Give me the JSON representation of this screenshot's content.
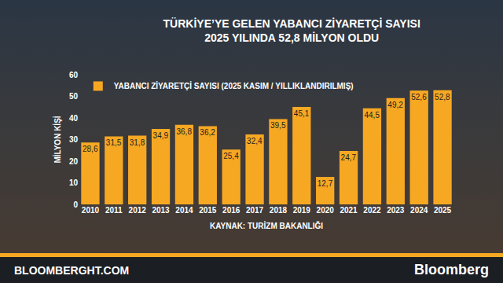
{
  "chart_data": {
    "type": "bar",
    "title": [
      "TÜRKİYE’YE GELEN YABANCI ZİYARETÇİ SAYISI",
      "2025 YILINDA 52,8 MİLYON OLDU"
    ],
    "ylabel": "MİLYON KİŞİ",
    "categories": [
      "2010",
      "2011",
      "2012",
      "2013",
      "2014",
      "2015",
      "2016",
      "2017",
      "2018",
      "2019",
      "2020",
      "2021",
      "2022",
      "2023",
      "2024",
      "2025"
    ],
    "series": [
      {
        "name": "YABANCI ZİYARETÇİ SAYISI (2025 KASIM / YILLIKLANDIRILMIŞ)",
        "color": "#f7a823",
        "values": [
          28.6,
          31.5,
          31.8,
          34.9,
          36.8,
          36.2,
          25.4,
          32.4,
          39.5,
          45.1,
          12.7,
          24.7,
          44.5,
          49.2,
          52.6,
          52.8
        ],
        "value_labels": [
          "28,6",
          "31,5",
          "31,8",
          "34,9",
          "36,8",
          "36,2",
          "25,4",
          "32,4",
          "39,5",
          "45,1",
          "12,7",
          "24,7",
          "44,5",
          "49,2",
          "52,6",
          "52,8"
        ]
      }
    ],
    "ylim": [
      0,
      60
    ],
    "yticks": [
      0,
      10,
      20,
      30,
      40,
      50,
      60
    ],
    "grid": false,
    "legend": "top left",
    "data_labels": true,
    "source": "KAYNAK: TURİZM BAKANLIĞI",
    "footer": [
      "BLOOMBERGHT.COM",
      "Bloomberg"
    ]
  }
}
